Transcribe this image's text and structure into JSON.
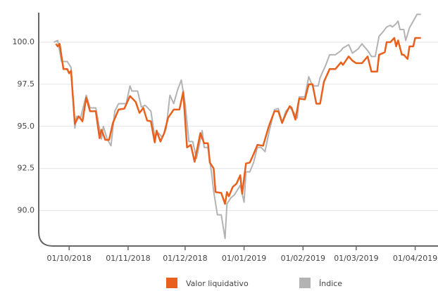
{
  "chart_data": {
    "type": "line",
    "xlim": [
      "2018-09-15",
      "2019-04-13"
    ],
    "ylim": [
      87.9,
      101.75
    ],
    "yticks": [
      {
        "value": 90,
        "label": "90.0"
      },
      {
        "value": 92.5,
        "label": "92.5"
      },
      {
        "value": 95,
        "label": "95.0"
      },
      {
        "value": 97.5,
        "label": "97.5"
      },
      {
        "value": 100,
        "label": "100.0"
      }
    ],
    "xticks": [
      {
        "value": "2018-10-01",
        "label": "01/10/2018"
      },
      {
        "value": "2018-11-01",
        "label": "01/11/2018"
      },
      {
        "value": "2018-12-01",
        "label": "01/12/2018"
      },
      {
        "value": "2019-01-01",
        "label": "01/01/2019"
      },
      {
        "value": "2019-02-01",
        "label": "01/02/2019"
      },
      {
        "value": "2019-03-01",
        "label": "01/03/2019"
      },
      {
        "value": "2019-04-01",
        "label": "01/04/2019"
      }
    ],
    "grid": true,
    "legend": "bottom",
    "series": [
      {
        "name": "Índice",
        "color": "#b3b3b3",
        "x": [
          "2018-09-23",
          "2018-09-25",
          "2018-09-27",
          "2018-09-30",
          "2018-10-02",
          "2018-10-04",
          "2018-10-05",
          "2018-10-07",
          "2018-10-10",
          "2018-10-12",
          "2018-10-15",
          "2018-10-18",
          "2018-10-19",
          "2018-10-21",
          "2018-10-23",
          "2018-10-25",
          "2018-10-27",
          "2018-10-31",
          "2018-11-02",
          "2018-11-03",
          "2018-11-06",
          "2018-11-08",
          "2018-11-10",
          "2018-11-13",
          "2018-11-15",
          "2018-11-17",
          "2018-11-19",
          "2018-11-21",
          "2018-11-23",
          "2018-11-25",
          "2018-11-27",
          "2018-11-29",
          "2018-12-01",
          "2018-12-03",
          "2018-12-05",
          "2018-12-07",
          "2018-12-10",
          "2018-12-11",
          "2018-12-13",
          "2018-12-15",
          "2018-12-16",
          "2018-12-18",
          "2018-12-20",
          "2018-12-22",
          "2018-12-23",
          "2018-12-25",
          "2018-12-27",
          "2018-12-30",
          "2019-01-01",
          "2019-01-02",
          "2019-01-04",
          "2019-01-06",
          "2019-01-08",
          "2019-01-10",
          "2019-01-12",
          "2019-01-14",
          "2019-01-17",
          "2019-01-19",
          "2019-01-21",
          "2019-01-23",
          "2019-01-25",
          "2019-01-27",
          "2019-01-29",
          "2019-01-30",
          "2019-02-02",
          "2019-02-04",
          "2019-02-06",
          "2019-02-09",
          "2019-02-10",
          "2019-02-13",
          "2019-02-15",
          "2019-02-18",
          "2019-02-21",
          "2019-02-22",
          "2019-02-25",
          "2019-02-27",
          "2019-03-02",
          "2019-03-04",
          "2019-03-07",
          "2019-03-09",
          "2019-03-11",
          "2019-03-13",
          "2019-03-15",
          "2019-03-17",
          "2019-03-19",
          "2019-03-20",
          "2019-03-22",
          "2019-03-23",
          "2019-03-24",
          "2019-03-26",
          "2019-03-27",
          "2019-03-29",
          "2019-03-31",
          "2019-04-02",
          "2019-04-04"
        ],
        "values": [
          100.0,
          100.1,
          98.85,
          98.85,
          98.5,
          94.9,
          95.6,
          95.5,
          96.85,
          96.1,
          96.1,
          94.25,
          95.0,
          94.25,
          93.85,
          95.9,
          96.35,
          96.35,
          97.4,
          97.1,
          97.1,
          96.15,
          96.25,
          95.9,
          94.4,
          94.6,
          94.35,
          94.85,
          96.85,
          96.35,
          97.15,
          97.75,
          96.35,
          94.1,
          94.1,
          93.1,
          94.75,
          93.75,
          93.75,
          92.15,
          91.15,
          89.75,
          89.75,
          88.35,
          90.4,
          90.75,
          90.95,
          91.5,
          90.5,
          92.3,
          92.3,
          92.85,
          93.75,
          93.75,
          93.5,
          94.6,
          96.0,
          96.05,
          95.25,
          95.9,
          96.15,
          95.85,
          95.5,
          96.75,
          96.75,
          97.95,
          97.4,
          97.4,
          97.9,
          98.65,
          99.25,
          99.25,
          99.5,
          99.65,
          99.85,
          99.35,
          99.6,
          99.9,
          99.5,
          99.15,
          99.15,
          100.35,
          100.6,
          100.9,
          101.0,
          100.9,
          101.1,
          101.25,
          100.75,
          100.75,
          100.1,
          100.85,
          101.25,
          101.65,
          101.65
        ]
      },
      {
        "name": "Valor liquidativo",
        "color": "#e8601c",
        "x": [
          "2018-09-24",
          "2018-09-25",
          "2018-09-26",
          "2018-09-28",
          "2018-09-30",
          "2018-10-01",
          "2018-10-02",
          "2018-10-04",
          "2018-10-06",
          "2018-10-08",
          "2018-10-10",
          "2018-10-12",
          "2018-10-15",
          "2018-10-17",
          "2018-10-18",
          "2018-10-20",
          "2018-10-22",
          "2018-10-24",
          "2018-10-27",
          "2018-10-30",
          "2018-11-02",
          "2018-11-05",
          "2018-11-07",
          "2018-11-09",
          "2018-11-11",
          "2018-11-13",
          "2018-11-15",
          "2018-11-16",
          "2018-11-18",
          "2018-11-20",
          "2018-11-22",
          "2018-11-25",
          "2018-11-28",
          "2018-11-30",
          "2018-12-02",
          "2018-12-04",
          "2018-12-06",
          "2018-12-09",
          "2018-12-11",
          "2018-12-13",
          "2018-12-14",
          "2018-12-16",
          "2018-12-17",
          "2018-12-20",
          "2018-12-22",
          "2018-12-23",
          "2018-12-24",
          "2018-12-26",
          "2018-12-28",
          "2018-12-30",
          "2018-12-31",
          "2019-01-02",
          "2019-01-04",
          "2019-01-06",
          "2019-01-08",
          "2019-01-11",
          "2019-01-14",
          "2019-01-17",
          "2019-01-19",
          "2019-01-21",
          "2019-01-23",
          "2019-01-25",
          "2019-01-26",
          "2019-01-28",
          "2019-01-30",
          "2019-02-02",
          "2019-02-04",
          "2019-02-06",
          "2019-02-08",
          "2019-02-10",
          "2019-02-12",
          "2019-02-15",
          "2019-02-18",
          "2019-02-21",
          "2019-02-22",
          "2019-02-25",
          "2019-02-27",
          "2019-03-01",
          "2019-03-04",
          "2019-03-07",
          "2019-03-09",
          "2019-03-12",
          "2019-03-13",
          "2019-03-16",
          "2019-03-17",
          "2019-03-19",
          "2019-03-21",
          "2019-03-22",
          "2019-03-23",
          "2019-03-25",
          "2019-03-26",
          "2019-03-28",
          "2019-03-29",
          "2019-03-31",
          "2019-04-01",
          "2019-04-04"
        ],
        "values": [
          99.9,
          99.75,
          99.9,
          98.4,
          98.4,
          98.15,
          98.3,
          95.15,
          95.6,
          95.3,
          96.7,
          95.9,
          95.9,
          94.3,
          94.8,
          94.2,
          94.2,
          95.2,
          96.0,
          96.05,
          96.8,
          96.45,
          95.8,
          96.1,
          95.35,
          95.3,
          94.05,
          94.75,
          94.1,
          94.6,
          95.5,
          96.0,
          96.0,
          97.05,
          93.75,
          93.9,
          92.9,
          94.6,
          94.0,
          94.0,
          92.85,
          92.5,
          91.1,
          91.05,
          90.4,
          91.1,
          90.85,
          91.4,
          91.6,
          92.1,
          91.0,
          92.8,
          92.85,
          93.35,
          93.9,
          93.85,
          95.0,
          95.9,
          95.9,
          95.2,
          95.75,
          96.2,
          96.1,
          95.4,
          96.65,
          96.6,
          97.5,
          97.5,
          96.35,
          96.35,
          97.65,
          98.4,
          98.4,
          98.8,
          98.65,
          99.15,
          98.9,
          98.75,
          98.75,
          99.15,
          98.25,
          98.25,
          99.25,
          99.4,
          100.0,
          100.0,
          100.25,
          99.75,
          100.1,
          99.25,
          99.25,
          99.0,
          99.75,
          99.75,
          100.25,
          100.25
        ]
      }
    ]
  }
}
